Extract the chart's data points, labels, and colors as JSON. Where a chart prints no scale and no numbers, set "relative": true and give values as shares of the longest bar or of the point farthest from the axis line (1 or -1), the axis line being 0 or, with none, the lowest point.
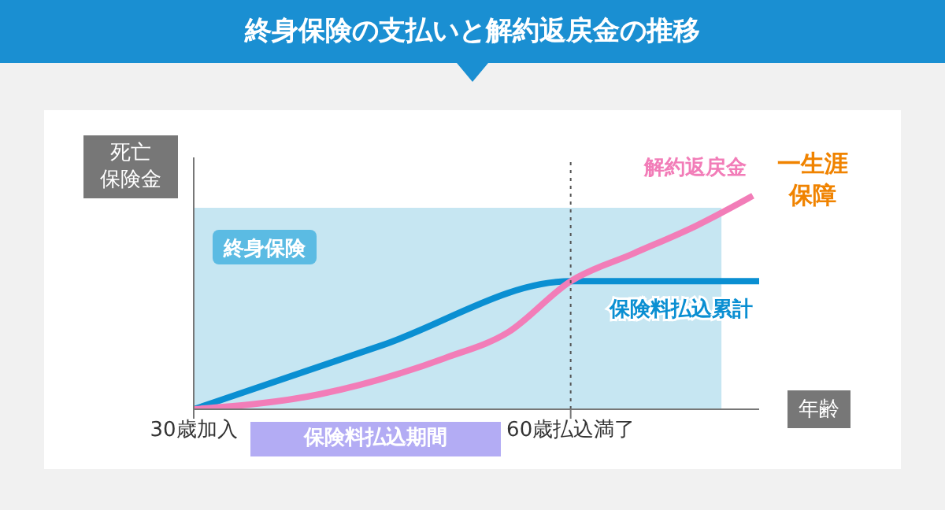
{
  "chart_data": {
    "type": "line",
    "title": "終身保険の支払いと解約返戻金の推移",
    "ylabel": "死亡保険金",
    "xlabel": "年齢",
    "relative": true,
    "xlim": [
      30,
      75
    ],
    "xticks": [
      {
        "value": 30,
        "label": "30歳加入"
      },
      {
        "value": 60,
        "label": "60歳払込満了"
      }
    ],
    "grid": false,
    "legend": false,
    "marker": "none",
    "ref_lines": [
      {
        "axis": "x",
        "value": 60,
        "color": "#555555",
        "line_style": "dotted"
      }
    ],
    "bands": [
      {
        "axis": "x",
        "from": 30,
        "to": 72,
        "label": "終身保険",
        "color": "#c6e6f2"
      }
    ],
    "annotations": [
      "保険料払込期間",
      "一生涯保障"
    ],
    "series": [
      {
        "name": "保険料払込累計",
        "color": "#0a8fd2",
        "x": [
          30,
          45,
          60,
          75
        ],
        "values": [
          0,
          0.3,
          0.6,
          0.6
        ]
      },
      {
        "name": "解約返戻金",
        "color": "#f27db8",
        "x": [
          30,
          40,
          50,
          55,
          60,
          65,
          70,
          74.5
        ],
        "values": [
          0,
          0.07,
          0.24,
          0.36,
          0.6,
          0.73,
          0.86,
          1
        ]
      }
    ]
  }
}
